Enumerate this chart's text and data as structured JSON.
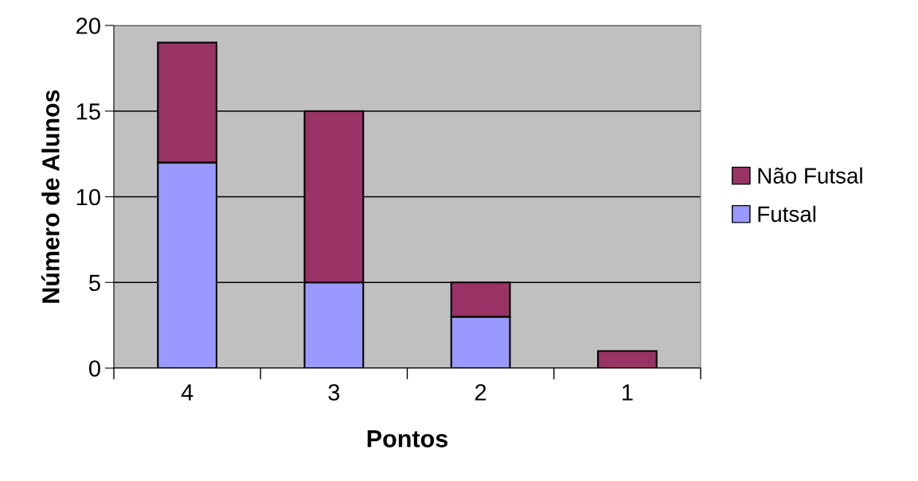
{
  "chart_data": {
    "type": "bar",
    "stacked": true,
    "xlabel": "Pontos",
    "ylabel": "Número de Alunos",
    "categories": [
      "4",
      "3",
      "2",
      "1"
    ],
    "series": [
      {
        "name": "Futsal",
        "color": "#9999ff",
        "values": [
          12,
          5,
          3,
          0
        ]
      },
      {
        "name": "Não Futsal",
        "color": "#993366",
        "values": [
          7,
          10,
          2,
          1
        ]
      }
    ],
    "ylim": [
      0,
      20
    ],
    "yticks": [
      0,
      5,
      10,
      15,
      20
    ],
    "grid": "y",
    "legend": "right"
  }
}
